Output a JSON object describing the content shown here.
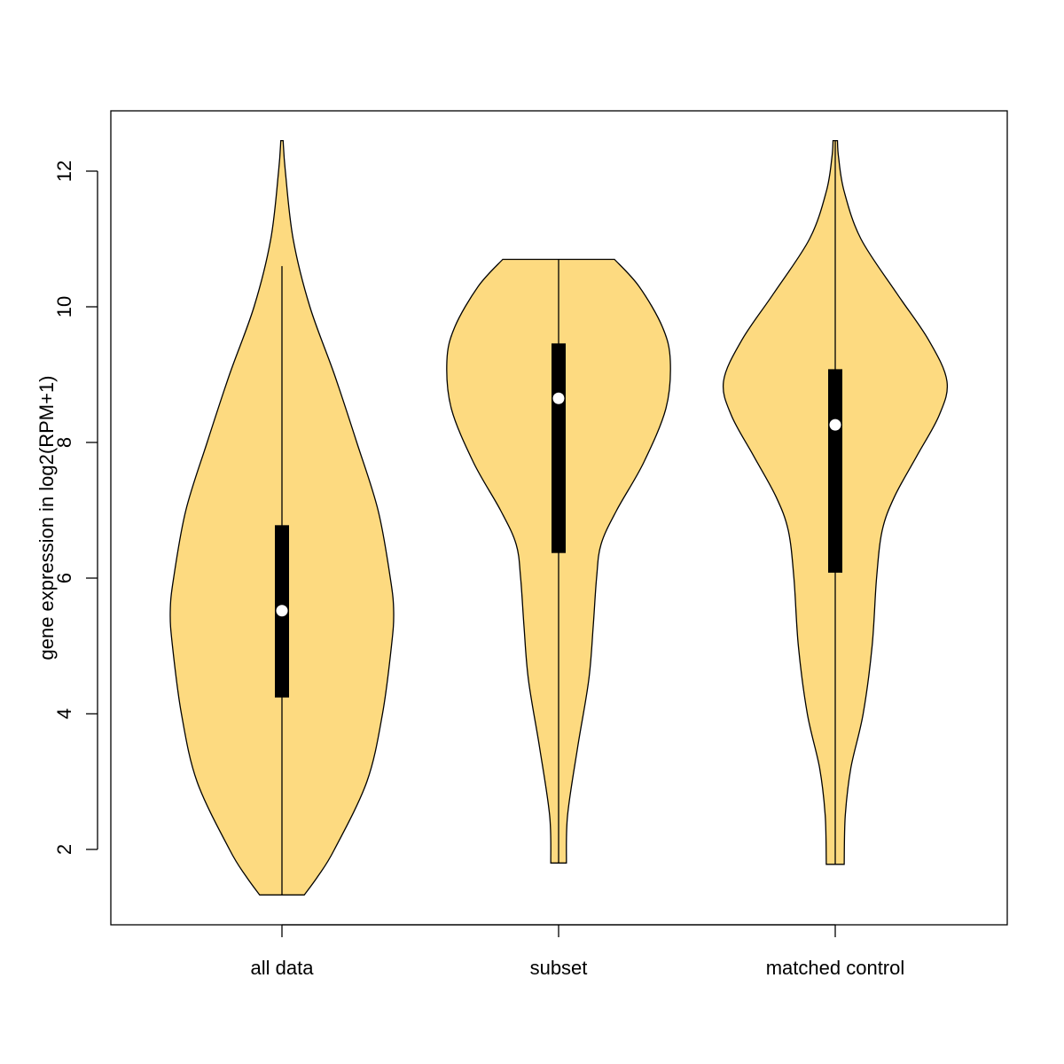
{
  "chart_data": {
    "type": "violin",
    "title": "",
    "xlabel": "",
    "ylabel": "gene expression in log2(RPM+1)",
    "ylim": [
      0.9,
      12.9
    ],
    "yticks": [
      2,
      4,
      6,
      8,
      10,
      12
    ],
    "grid": false,
    "fill_color": "#FDDA80",
    "categories": [
      "all data",
      "subset",
      "matched control"
    ],
    "series": [
      {
        "category": "all data",
        "min": 1.33,
        "q1": 4.24,
        "median": 5.52,
        "q3": 6.78,
        "whisker_upper": 10.6,
        "max": 12.45,
        "density_profile": [
          [
            1.33,
            0.2
          ],
          [
            1.6,
            0.32
          ],
          [
            2.0,
            0.47
          ],
          [
            3.0,
            0.76
          ],
          [
            4.0,
            0.9
          ],
          [
            5.0,
            0.98
          ],
          [
            5.5,
            1.0
          ],
          [
            6.0,
            0.97
          ],
          [
            7.0,
            0.86
          ],
          [
            8.0,
            0.67
          ],
          [
            9.0,
            0.47
          ],
          [
            10.0,
            0.25
          ],
          [
            11.0,
            0.1
          ],
          [
            12.0,
            0.03
          ],
          [
            12.45,
            0.01
          ]
        ]
      },
      {
        "category": "subset",
        "min": 1.8,
        "q1": 6.37,
        "median": 8.65,
        "q3": 9.46,
        "whisker_upper": 10.7,
        "max": 10.7,
        "density_profile": [
          [
            1.8,
            0.07
          ],
          [
            2.5,
            0.08
          ],
          [
            3.5,
            0.17
          ],
          [
            4.5,
            0.27
          ],
          [
            5.3,
            0.31
          ],
          [
            6.0,
            0.34
          ],
          [
            6.5,
            0.38
          ],
          [
            7.0,
            0.52
          ],
          [
            7.7,
            0.76
          ],
          [
            8.5,
            0.96
          ],
          [
            9.2,
            1.0
          ],
          [
            9.7,
            0.93
          ],
          [
            10.3,
            0.72
          ],
          [
            10.7,
            0.5
          ]
        ]
      },
      {
        "category": "matched control",
        "min": 1.78,
        "q1": 6.08,
        "median": 8.26,
        "q3": 9.08,
        "whisker_upper": 12.45,
        "max": 12.45,
        "density_profile": [
          [
            1.78,
            0.08
          ],
          [
            2.5,
            0.09
          ],
          [
            3.2,
            0.14
          ],
          [
            4.0,
            0.25
          ],
          [
            5.0,
            0.33
          ],
          [
            6.0,
            0.37
          ],
          [
            6.7,
            0.42
          ],
          [
            7.2,
            0.53
          ],
          [
            7.8,
            0.73
          ],
          [
            8.4,
            0.93
          ],
          [
            8.9,
            1.0
          ],
          [
            9.5,
            0.84
          ],
          [
            10.2,
            0.55
          ],
          [
            11.0,
            0.23
          ],
          [
            11.7,
            0.08
          ],
          [
            12.2,
            0.03
          ],
          [
            12.45,
            0.02
          ]
        ]
      }
    ]
  }
}
